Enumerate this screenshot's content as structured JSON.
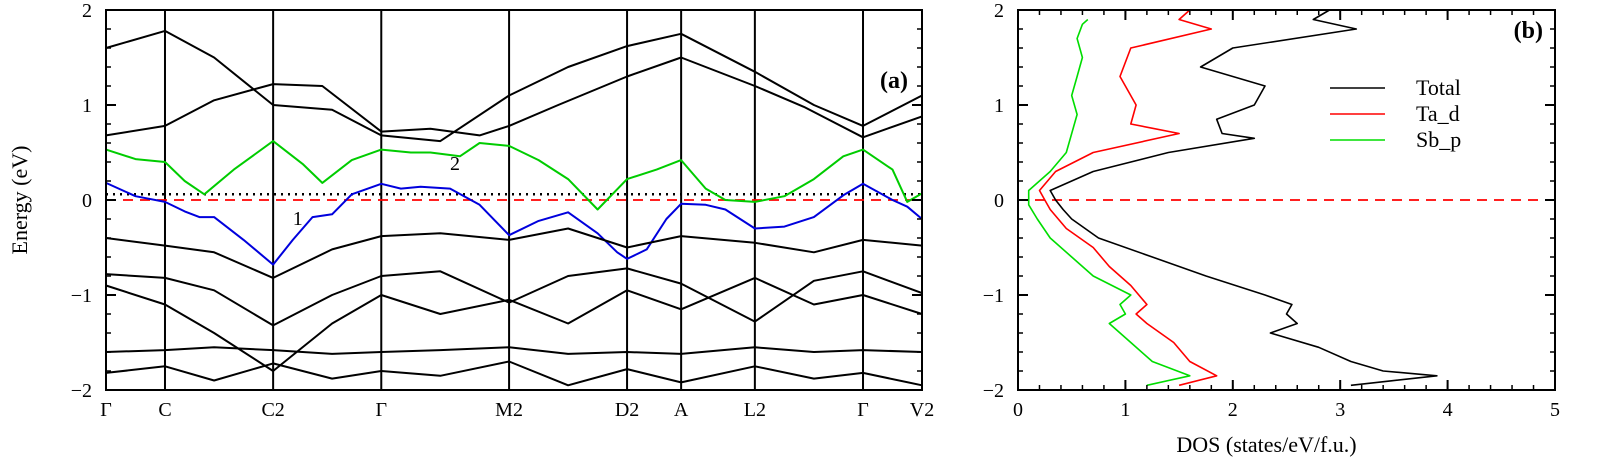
{
  "chart_data": [
    {
      "panel": "(a)",
      "type": "line",
      "title": "",
      "xlabel": "",
      "ylabel": "Energy (eV)",
      "ylim": [
        -2,
        2
      ],
      "y_ticks": [
        -2,
        -1,
        0,
        1,
        2
      ],
      "x_ticks": [
        "Γ",
        "C",
        "C2",
        "Γ",
        "M2",
        "D2",
        "A",
        "L2",
        "Γ",
        "V2"
      ],
      "x_tick_positions": [
        0,
        0.6,
        1.7,
        2.8,
        4.1,
        5.3,
        5.85,
        6.6,
        7.7,
        8.3
      ],
      "xlim": [
        0,
        8.3
      ],
      "fermi_level": 0,
      "dotted_reference": 0.06,
      "band_labels": [
        {
          "text": "1",
          "x": 1.95,
          "y": -0.2
        },
        {
          "text": "2",
          "x": 3.55,
          "y": 0.38
        }
      ],
      "series": [
        {
          "color": "#00cc00",
          "highlight": "band 2",
          "x": [
            0,
            0.3,
            0.6,
            0.8,
            1.0,
            1.3,
            1.7,
            2.0,
            2.2,
            2.5,
            2.8,
            3.1,
            3.3,
            3.6,
            3.8,
            4.1,
            4.4,
            4.7,
            5.0,
            5.3,
            5.6,
            5.85,
            6.1,
            6.3,
            6.6,
            6.9,
            7.2,
            7.5,
            7.7,
            8.0,
            8.15,
            8.3
          ],
          "y": [
            0.53,
            0.43,
            0.4,
            0.2,
            0.06,
            0.32,
            0.62,
            0.38,
            0.18,
            0.42,
            0.53,
            0.5,
            0.5,
            0.46,
            0.6,
            0.57,
            0.42,
            0.22,
            -0.1,
            0.22,
            0.32,
            0.42,
            0.12,
            0.0,
            -0.02,
            0.04,
            0.22,
            0.46,
            0.53,
            0.32,
            -0.02,
            0.07
          ]
        },
        {
          "color": "#0000dd",
          "highlight": "band 1",
          "x": [
            0,
            0.3,
            0.6,
            0.8,
            0.95,
            1.1,
            1.4,
            1.7,
            1.9,
            2.1,
            2.3,
            2.5,
            2.8,
            3.0,
            3.2,
            3.5,
            3.8,
            4.1,
            4.4,
            4.7,
            5.0,
            5.2,
            5.3,
            5.5,
            5.7,
            5.85,
            6.1,
            6.3,
            6.6,
            6.9,
            7.2,
            7.5,
            7.7,
            8.0,
            8.15,
            8.3
          ],
          "y": [
            0.18,
            0.04,
            -0.02,
            -0.12,
            -0.18,
            -0.18,
            -0.42,
            -0.68,
            -0.42,
            -0.18,
            -0.15,
            0.06,
            0.17,
            0.12,
            0.14,
            0.12,
            -0.05,
            -0.37,
            -0.22,
            -0.13,
            -0.35,
            -0.55,
            -0.62,
            -0.52,
            -0.2,
            -0.04,
            -0.05,
            -0.1,
            -0.3,
            -0.28,
            -0.18,
            0.05,
            0.17,
            0.0,
            -0.07,
            -0.2
          ]
        },
        {
          "color": "#000000",
          "x": [
            0,
            0.6,
            1.1,
            1.7,
            2.2,
            2.8,
            3.3,
            3.8,
            4.1,
            4.6,
            5.3,
            5.85,
            6.6,
            7.1,
            7.7,
            8.3
          ],
          "y": [
            0.68,
            0.78,
            1.05,
            1.22,
            1.2,
            0.72,
            0.75,
            0.68,
            0.78,
            1.0,
            1.3,
            1.5,
            1.2,
            0.98,
            0.66,
            0.88
          ]
        },
        {
          "color": "#000000",
          "x": [
            0,
            0.6,
            1.1,
            1.7,
            2.3,
            2.8,
            3.4,
            4.1,
            4.7,
            5.3,
            5.85,
            6.6,
            7.2,
            7.7,
            8.3
          ],
          "y": [
            1.6,
            1.78,
            1.5,
            1.0,
            0.95,
            0.68,
            0.62,
            1.1,
            1.4,
            1.62,
            1.75,
            1.35,
            1.0,
            0.78,
            1.1
          ]
        },
        {
          "color": "#000000",
          "x": [
            0,
            0.6,
            1.1,
            1.7,
            2.3,
            2.8,
            3.4,
            4.1,
            4.7,
            5.3,
            5.85,
            6.6,
            7.2,
            7.7,
            8.3
          ],
          "y": [
            -0.4,
            -0.48,
            -0.55,
            -0.82,
            -0.52,
            -0.38,
            -0.35,
            -0.42,
            -0.3,
            -0.5,
            -0.38,
            -0.45,
            -0.55,
            -0.42,
            -0.48
          ]
        },
        {
          "color": "#000000",
          "x": [
            0,
            0.6,
            1.1,
            1.7,
            2.3,
            2.8,
            3.4,
            4.1,
            4.7,
            5.3,
            5.85,
            6.6,
            7.2,
            7.7,
            8.3
          ],
          "y": [
            -0.78,
            -0.82,
            -0.95,
            -1.32,
            -1.0,
            -0.8,
            -0.75,
            -1.08,
            -0.8,
            -0.72,
            -0.88,
            -1.28,
            -0.85,
            -0.75,
            -0.98
          ]
        },
        {
          "color": "#000000",
          "x": [
            0,
            0.6,
            1.1,
            1.7,
            2.3,
            2.8,
            3.4,
            4.1,
            4.7,
            5.3,
            5.85,
            6.6,
            7.2,
            7.7,
            8.3
          ],
          "y": [
            -0.9,
            -1.1,
            -1.4,
            -1.8,
            -1.3,
            -1.0,
            -1.2,
            -1.05,
            -1.3,
            -0.95,
            -1.15,
            -0.82,
            -1.1,
            -1.0,
            -1.2
          ]
        },
        {
          "color": "#000000",
          "x": [
            0,
            0.6,
            1.1,
            1.7,
            2.3,
            2.8,
            3.4,
            4.1,
            4.7,
            5.3,
            5.85,
            6.6,
            7.2,
            7.7,
            8.3
          ],
          "y": [
            -1.6,
            -1.58,
            -1.55,
            -1.58,
            -1.62,
            -1.6,
            -1.58,
            -1.55,
            -1.62,
            -1.6,
            -1.62,
            -1.55,
            -1.6,
            -1.58,
            -1.6
          ]
        },
        {
          "color": "#000000",
          "x": [
            0,
            0.6,
            1.1,
            1.7,
            2.3,
            2.8,
            3.4,
            4.1,
            4.7,
            5.3,
            5.85,
            6.6,
            7.2,
            7.7,
            8.3
          ],
          "y": [
            -1.82,
            -1.75,
            -1.9,
            -1.72,
            -1.88,
            -1.8,
            -1.85,
            -1.7,
            -1.95,
            -1.78,
            -1.92,
            -1.75,
            -1.88,
            -1.82,
            -1.95
          ]
        }
      ]
    },
    {
      "panel": "(b)",
      "type": "line",
      "title": "",
      "xlabel": "DOS (states/eV/f.u.)",
      "ylabel": "",
      "xlim": [
        0,
        5
      ],
      "ylim": [
        -2,
        2
      ],
      "x_ticks": [
        0,
        1,
        2,
        3,
        4,
        5
      ],
      "y_ticks": [
        -2,
        -1,
        0,
        1,
        2
      ],
      "fermi_level": 0,
      "legend_position": "upper-right",
      "series": [
        {
          "name": "Total",
          "color": "#000000",
          "y": [
            -1.95,
            -1.85,
            -1.8,
            -1.7,
            -1.55,
            -1.4,
            -1.3,
            -1.2,
            -1.1,
            -1.0,
            -0.8,
            -0.6,
            -0.4,
            -0.2,
            -0.1,
            0.0,
            0.1,
            0.3,
            0.5,
            0.65,
            0.7,
            0.85,
            1.0,
            1.2,
            1.4,
            1.6,
            1.8,
            1.9,
            2.0
          ],
          "x": [
            3.1,
            3.9,
            3.4,
            3.1,
            2.8,
            2.35,
            2.6,
            2.5,
            2.55,
            2.3,
            1.75,
            1.25,
            0.75,
            0.5,
            0.42,
            0.35,
            0.3,
            0.7,
            1.4,
            2.2,
            1.9,
            1.85,
            2.2,
            2.3,
            1.7,
            2.0,
            3.15,
            2.75,
            2.9
          ]
        },
        {
          "name": "Ta_d",
          "color": "#ff0000",
          "y": [
            -1.95,
            -1.85,
            -1.7,
            -1.5,
            -1.3,
            -1.2,
            -1.1,
            -0.9,
            -0.7,
            -0.5,
            -0.3,
            -0.1,
            0.0,
            0.1,
            0.3,
            0.5,
            0.7,
            0.8,
            1.0,
            1.3,
            1.6,
            1.8,
            1.9,
            2.0
          ],
          "x": [
            1.5,
            1.85,
            1.6,
            1.45,
            1.2,
            1.1,
            1.2,
            1.05,
            0.85,
            0.7,
            0.45,
            0.3,
            0.25,
            0.2,
            0.35,
            0.7,
            1.5,
            1.05,
            1.1,
            0.95,
            1.05,
            1.8,
            1.5,
            1.6
          ]
        },
        {
          "name": "Sb_p",
          "color": "#00dd00",
          "y": [
            -1.95,
            -1.85,
            -1.7,
            -1.5,
            -1.3,
            -1.2,
            -1.1,
            -1.0,
            -0.8,
            -0.6,
            -0.4,
            -0.2,
            -0.05,
            0.1,
            0.3,
            0.5,
            0.7,
            0.9,
            1.1,
            1.3,
            1.5,
            1.7,
            1.85,
            1.9
          ],
          "x": [
            1.2,
            1.6,
            1.25,
            1.05,
            0.85,
            1.0,
            0.95,
            1.05,
            0.7,
            0.5,
            0.3,
            0.18,
            0.1,
            0.1,
            0.3,
            0.45,
            0.5,
            0.55,
            0.5,
            0.55,
            0.6,
            0.55,
            0.6,
            0.65
          ]
        }
      ]
    }
  ]
}
